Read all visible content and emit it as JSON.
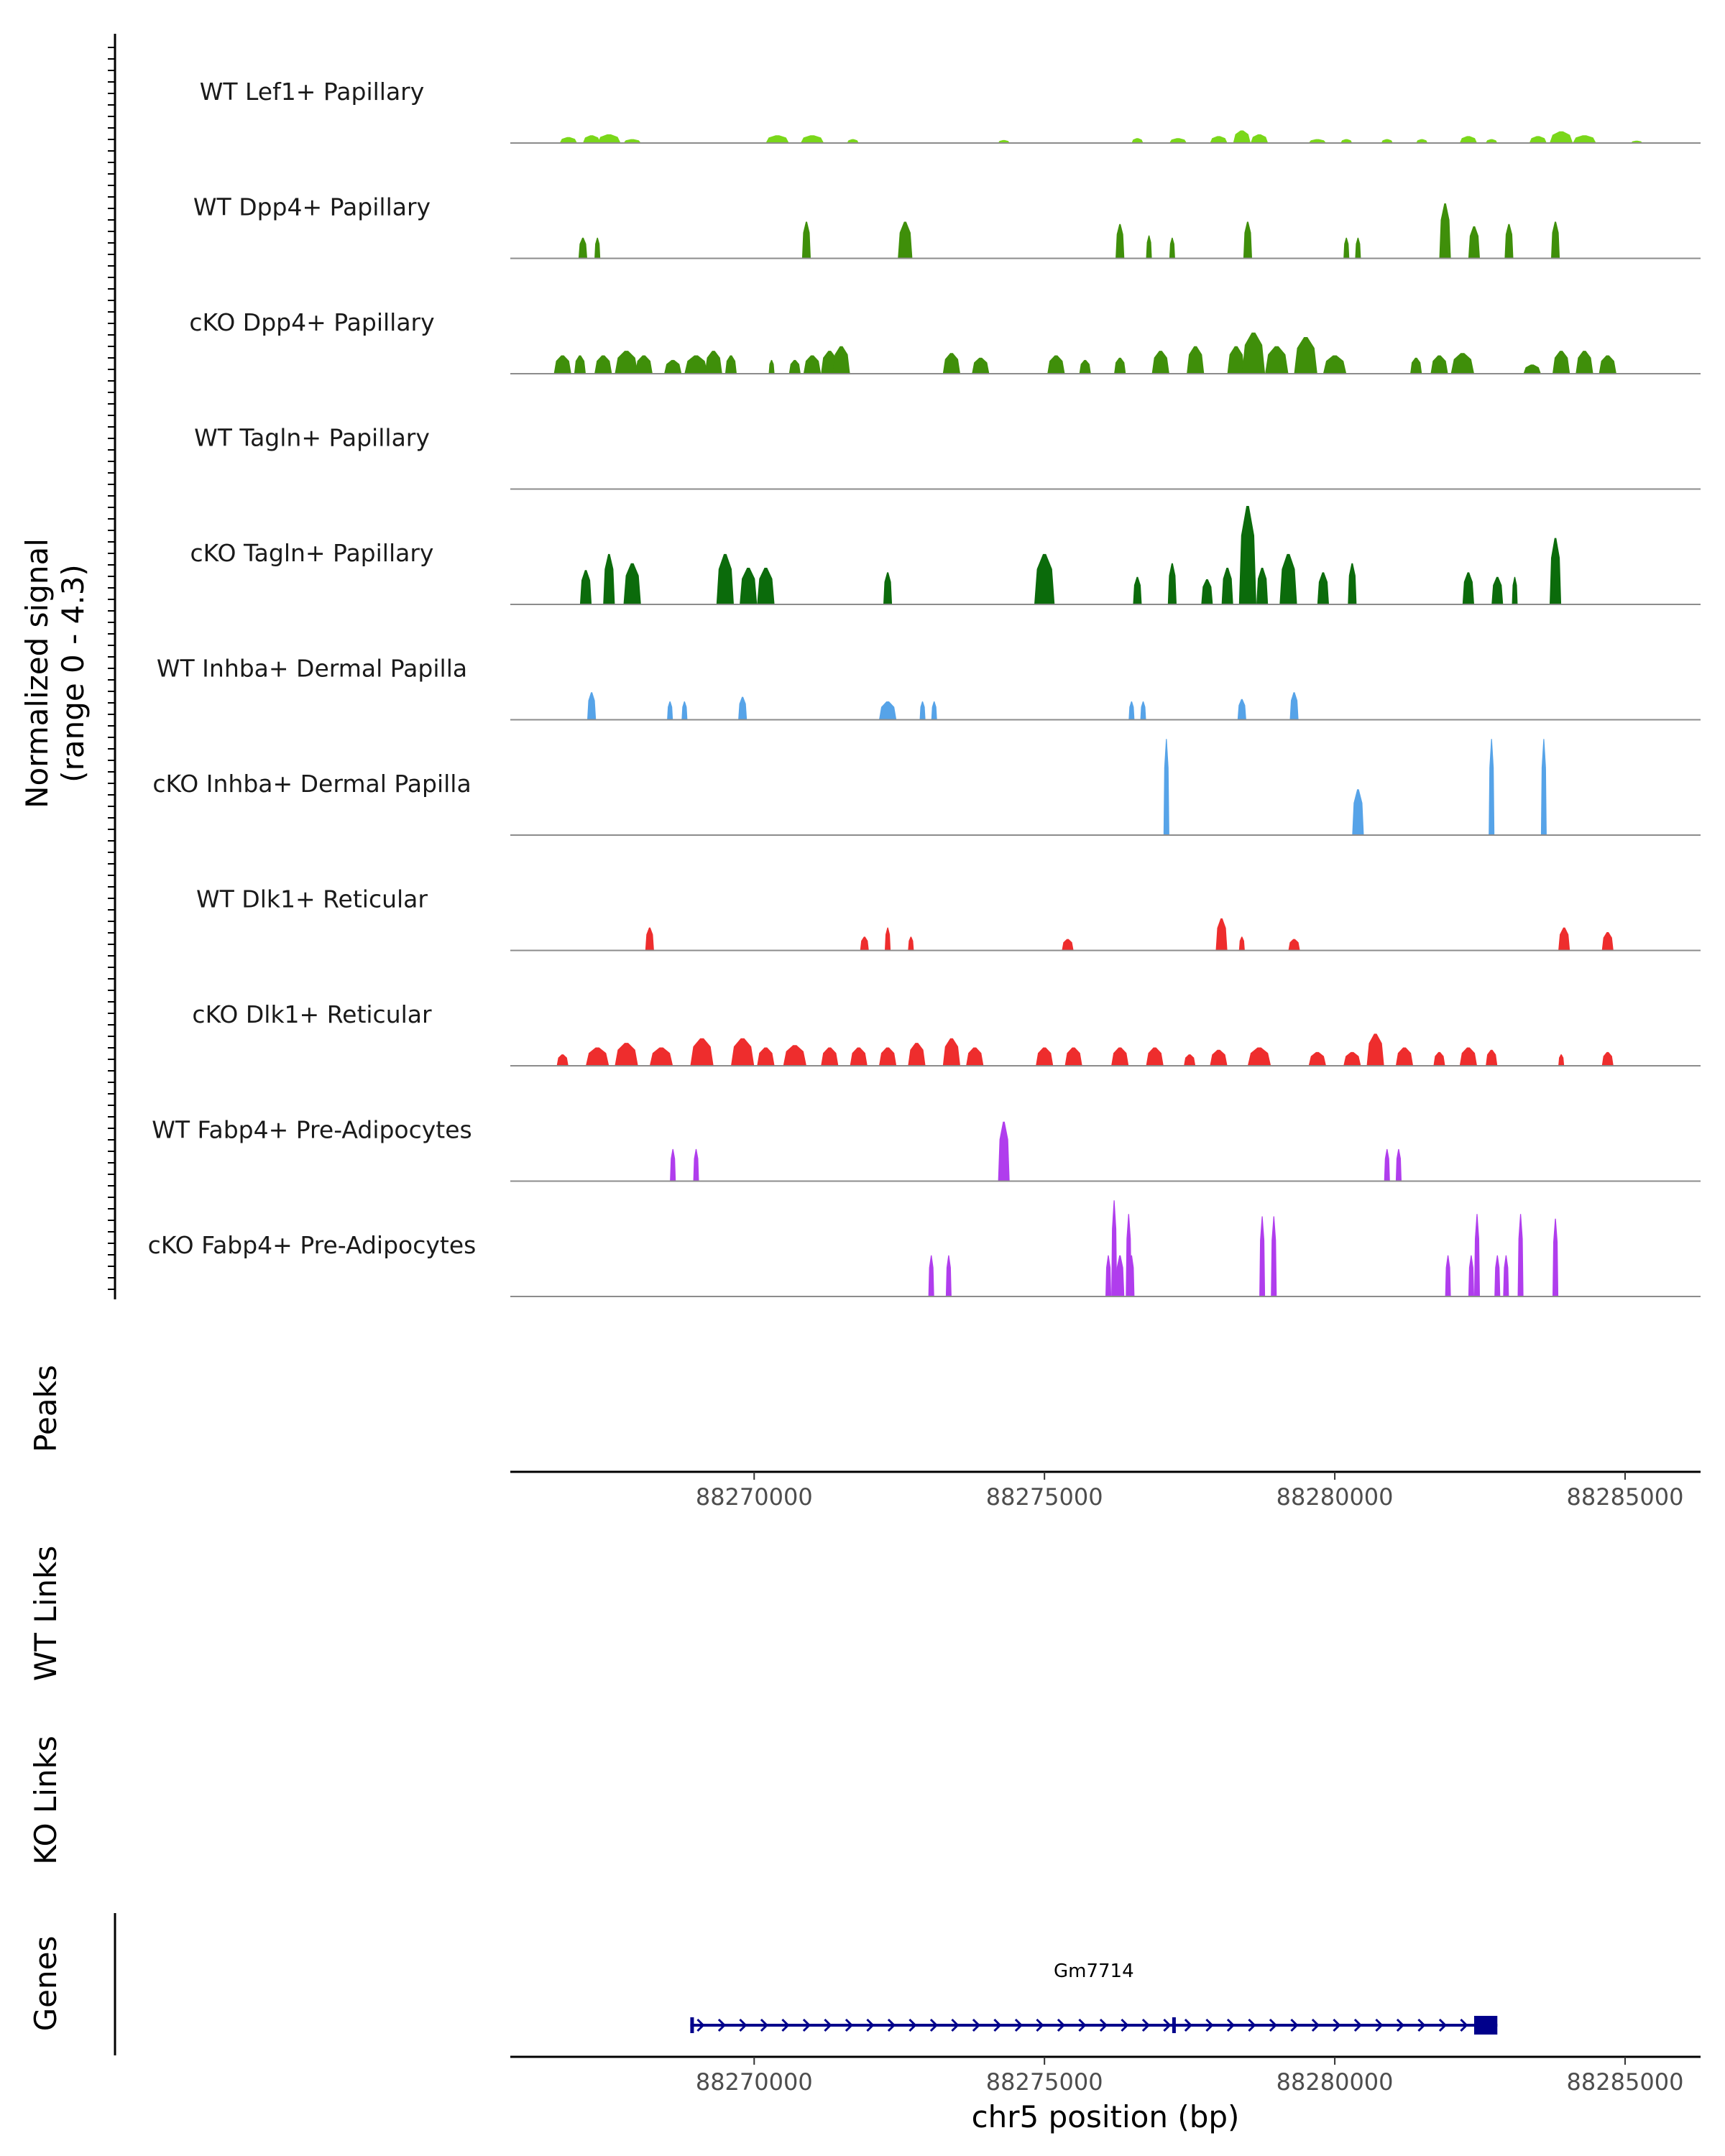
{
  "chart_data": {
    "type": "area",
    "title": "",
    "region": "chr5",
    "xlim": [
      88265800,
      88286300
    ],
    "x_ticks": [
      88270000,
      88275000,
      88280000,
      88285000
    ],
    "x_tick_labels": [
      "88270000",
      "88275000",
      "88280000",
      "88285000"
    ],
    "xlabel": "chr5 position (bp)",
    "ylabel": "Normalized signal",
    "ylabel_range": "(range 0 - 4.3)",
    "ylim": [
      0,
      4.3
    ],
    "series": [
      {
        "name": "WT Lef1+ Papillary",
        "color": "#7ad71a",
        "peaks": [
          [
            88266800,
            0.3,
            0.26
          ],
          [
            88267200,
            0.3,
            0.34
          ],
          [
            88267500,
            0.4,
            0.38
          ],
          [
            88267900,
            0.3,
            0.17
          ],
          [
            88270400,
            0.4,
            0.34
          ],
          [
            88271000,
            0.4,
            0.34
          ],
          [
            88271700,
            0.2,
            0.17
          ],
          [
            88274300,
            0.2,
            0.13
          ],
          [
            88276600,
            0.2,
            0.21
          ],
          [
            88277300,
            0.3,
            0.21
          ],
          [
            88278000,
            0.3,
            0.3
          ],
          [
            88278400,
            0.3,
            0.55
          ],
          [
            88278700,
            0.3,
            0.38
          ],
          [
            88279700,
            0.3,
            0.17
          ],
          [
            88280200,
            0.2,
            0.17
          ],
          [
            88280900,
            0.2,
            0.17
          ],
          [
            88281500,
            0.2,
            0.17
          ],
          [
            88282300,
            0.3,
            0.3
          ],
          [
            88282700,
            0.2,
            0.17
          ],
          [
            88283500,
            0.3,
            0.3
          ],
          [
            88283900,
            0.4,
            0.51
          ],
          [
            88284300,
            0.4,
            0.34
          ],
          [
            88285200,
            0.2,
            0.1
          ]
        ]
      },
      {
        "name": "WT Dpp4+ Papillary",
        "color": "#3f8f0a",
        "peaks": [
          [
            88267050,
            0.15,
            0.9
          ],
          [
            88267300,
            0.1,
            0.9
          ],
          [
            88270900,
            0.15,
            1.6
          ],
          [
            88272600,
            0.25,
            1.6
          ],
          [
            88276300,
            0.15,
            1.5
          ],
          [
            88276800,
            0.1,
            1.0
          ],
          [
            88277200,
            0.1,
            0.9
          ],
          [
            88278500,
            0.15,
            1.6
          ],
          [
            88280200,
            0.1,
            0.9
          ],
          [
            88280400,
            0.1,
            0.9
          ],
          [
            88281900,
            0.2,
            2.4
          ],
          [
            88282400,
            0.2,
            1.4
          ],
          [
            88283000,
            0.15,
            1.5
          ],
          [
            88283800,
            0.15,
            1.6
          ]
        ]
      },
      {
        "name": "cKO Dpp4+ Papillary",
        "color": "#3f8f0a",
        "peaks": [
          [
            88266700,
            0.3,
            0.8
          ],
          [
            88267000,
            0.2,
            0.8
          ],
          [
            88267400,
            0.3,
            0.8
          ],
          [
            88267800,
            0.4,
            1.0
          ],
          [
            88268100,
            0.3,
            0.8
          ],
          [
            88268600,
            0.3,
            0.6
          ],
          [
            88269000,
            0.4,
            0.8
          ],
          [
            88269300,
            0.3,
            1.0
          ],
          [
            88269600,
            0.2,
            0.8
          ],
          [
            88270300,
            0.1,
            0.6
          ],
          [
            88270700,
            0.2,
            0.6
          ],
          [
            88271000,
            0.3,
            0.8
          ],
          [
            88271300,
            0.3,
            1.0
          ],
          [
            88271500,
            0.3,
            1.2
          ],
          [
            88273400,
            0.3,
            0.9
          ],
          [
            88273900,
            0.3,
            0.7
          ],
          [
            88275200,
            0.3,
            0.8
          ],
          [
            88275700,
            0.2,
            0.6
          ],
          [
            88276300,
            0.2,
            0.7
          ],
          [
            88277000,
            0.3,
            1.0
          ],
          [
            88277600,
            0.3,
            1.2
          ],
          [
            88278300,
            0.3,
            1.2
          ],
          [
            88278600,
            0.4,
            1.8
          ],
          [
            88279000,
            0.4,
            1.2
          ],
          [
            88279500,
            0.4,
            1.6
          ],
          [
            88280000,
            0.4,
            0.8
          ],
          [
            88281400,
            0.2,
            0.7
          ],
          [
            88281800,
            0.3,
            0.8
          ],
          [
            88282200,
            0.4,
            0.9
          ],
          [
            88283400,
            0.3,
            0.4
          ],
          [
            88283900,
            0.3,
            1.0
          ],
          [
            88284300,
            0.3,
            1.0
          ],
          [
            88284700,
            0.3,
            0.8
          ]
        ]
      },
      {
        "name": "WT Tagln+ Papillary",
        "color": "#0b6b0b",
        "peaks": []
      },
      {
        "name": "cKO Tagln+ Papillary",
        "color": "#0b6b0b",
        "peaks": [
          [
            88267100,
            0.2,
            1.5
          ],
          [
            88267500,
            0.2,
            2.2
          ],
          [
            88267900,
            0.3,
            1.8
          ],
          [
            88269500,
            0.3,
            2.2
          ],
          [
            88269900,
            0.3,
            1.6
          ],
          [
            88270200,
            0.3,
            1.6
          ],
          [
            88272300,
            0.15,
            1.4
          ],
          [
            88275000,
            0.35,
            2.2
          ],
          [
            88276600,
            0.15,
            1.2
          ],
          [
            88277200,
            0.15,
            1.8
          ],
          [
            88277800,
            0.2,
            1.1
          ],
          [
            88278150,
            0.2,
            1.6
          ],
          [
            88278500,
            0.3,
            4.3
          ],
          [
            88278750,
            0.2,
            1.6
          ],
          [
            88279200,
            0.3,
            2.2
          ],
          [
            88279800,
            0.2,
            1.4
          ],
          [
            88280300,
            0.15,
            1.8
          ],
          [
            88282300,
            0.2,
            1.4
          ],
          [
            88282800,
            0.2,
            1.2
          ],
          [
            88283100,
            0.1,
            1.2
          ],
          [
            88283800,
            0.2,
            2.9
          ]
        ]
      },
      {
        "name": "WT Inhba+ Dermal Papilla",
        "color": "#56a3e8",
        "peaks": [
          [
            88267200,
            0.15,
            1.2
          ],
          [
            88268550,
            0.1,
            0.8
          ],
          [
            88268800,
            0.1,
            0.8
          ],
          [
            88269800,
            0.15,
            1.0
          ],
          [
            88272300,
            0.3,
            0.8
          ],
          [
            88272900,
            0.1,
            0.8
          ],
          [
            88273100,
            0.1,
            0.8
          ],
          [
            88276500,
            0.1,
            0.8
          ],
          [
            88276700,
            0.1,
            0.8
          ],
          [
            88278400,
            0.15,
            0.9
          ],
          [
            88279300,
            0.15,
            1.2
          ]
        ]
      },
      {
        "name": "cKO Inhba+ Dermal Papilla",
        "color": "#56a3e8",
        "peaks": [
          [
            88277100,
            0.1,
            4.2
          ],
          [
            88280400,
            0.2,
            2.0
          ],
          [
            88282700,
            0.1,
            4.2
          ],
          [
            88283600,
            0.1,
            4.2
          ]
        ]
      },
      {
        "name": "WT Dlk1+ Reticular",
        "color": "#ee2d2d",
        "peaks": [
          [
            88268200,
            0.15,
            1.0
          ],
          [
            88271900,
            0.15,
            0.6
          ],
          [
            88272300,
            0.1,
            1.0
          ],
          [
            88272700,
            0.1,
            0.6
          ],
          [
            88275400,
            0.2,
            0.5
          ],
          [
            88278050,
            0.2,
            1.4
          ],
          [
            88278400,
            0.1,
            0.6
          ],
          [
            88279300,
            0.2,
            0.5
          ],
          [
            88283950,
            0.2,
            1.0
          ],
          [
            88284700,
            0.2,
            0.8
          ]
        ]
      },
      {
        "name": "cKO Dlk1+ Reticular",
        "color": "#ee2d2d",
        "peaks": [
          [
            88266700,
            0.2,
            0.5
          ],
          [
            88267300,
            0.4,
            0.8
          ],
          [
            88267800,
            0.4,
            1.0
          ],
          [
            88268400,
            0.4,
            0.8
          ],
          [
            88269100,
            0.4,
            1.2
          ],
          [
            88269800,
            0.4,
            1.2
          ],
          [
            88270200,
            0.3,
            0.8
          ],
          [
            88270700,
            0.4,
            0.9
          ],
          [
            88271300,
            0.3,
            0.8
          ],
          [
            88271800,
            0.3,
            0.8
          ],
          [
            88272300,
            0.3,
            0.8
          ],
          [
            88272800,
            0.3,
            1.0
          ],
          [
            88273400,
            0.3,
            1.2
          ],
          [
            88273800,
            0.3,
            0.8
          ],
          [
            88275000,
            0.3,
            0.8
          ],
          [
            88275500,
            0.3,
            0.8
          ],
          [
            88276300,
            0.3,
            0.8
          ],
          [
            88276900,
            0.3,
            0.8
          ],
          [
            88277500,
            0.2,
            0.5
          ],
          [
            88278000,
            0.3,
            0.7
          ],
          [
            88278700,
            0.4,
            0.8
          ],
          [
            88279700,
            0.3,
            0.6
          ],
          [
            88280300,
            0.3,
            0.6
          ],
          [
            88280700,
            0.3,
            1.4
          ],
          [
            88281200,
            0.3,
            0.8
          ],
          [
            88281800,
            0.2,
            0.6
          ],
          [
            88282300,
            0.3,
            0.8
          ],
          [
            88282700,
            0.2,
            0.7
          ],
          [
            88283900,
            0.1,
            0.5
          ],
          [
            88284700,
            0.2,
            0.6
          ]
        ]
      },
      {
        "name": "WT Fabp4+ Pre-Adipocytes",
        "color": "#b03ded",
        "peaks": [
          [
            88268600,
            0.1,
            1.4
          ],
          [
            88269000,
            0.1,
            1.4
          ],
          [
            88274300,
            0.2,
            2.6
          ],
          [
            88280900,
            0.1,
            1.4
          ],
          [
            88281100,
            0.1,
            1.4
          ]
        ]
      },
      {
        "name": "cKO Fabp4+ Pre-Adipocytes",
        "color": "#b03ded",
        "peaks": [
          [
            88273050,
            0.1,
            1.8
          ],
          [
            88273350,
            0.1,
            1.8
          ],
          [
            88276100,
            0.1,
            1.8
          ],
          [
            88276200,
            0.1,
            4.2
          ],
          [
            88276300,
            0.15,
            1.8
          ],
          [
            88276450,
            0.1,
            3.6
          ],
          [
            88276500,
            0.1,
            1.8
          ],
          [
            88278750,
            0.1,
            3.5
          ],
          [
            88278950,
            0.1,
            3.5
          ],
          [
            88281950,
            0.1,
            1.8
          ],
          [
            88282350,
            0.1,
            1.8
          ],
          [
            88282450,
            0.1,
            3.6
          ],
          [
            88282800,
            0.1,
            1.8
          ],
          [
            88282950,
            0.1,
            1.8
          ],
          [
            88283200,
            0.1,
            3.6
          ],
          [
            88283800,
            0.1,
            3.4
          ]
        ]
      }
    ],
    "panels": {
      "peaks_label": "Peaks",
      "wt_links_label": "WT Links",
      "ko_links_label": "KO Links",
      "genes_label": "Genes"
    },
    "gene": {
      "name": "Gm7714",
      "color": "#00008b",
      "start": 88268900,
      "end": 88282800,
      "exons": [
        [
          88268900,
          88268960
        ],
        [
          88277200,
          88277260
        ],
        [
          88282400,
          88282800
        ]
      ],
      "strand": "+"
    }
  }
}
